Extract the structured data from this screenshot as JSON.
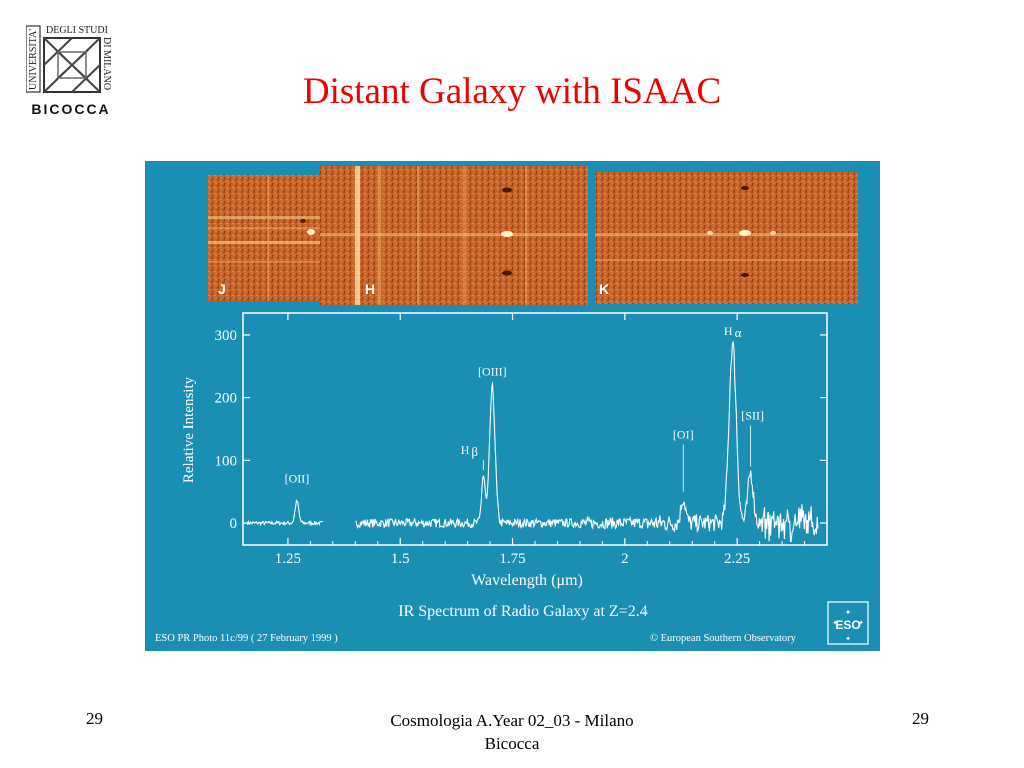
{
  "slide": {
    "title": "Distant Galaxy with ISAAC",
    "logo_text": {
      "line1": "UNIVERSITA'",
      "line2": "DEGLI STUDI",
      "line3": "DI MILANO",
      "name": "BICOCCA"
    }
  },
  "figure": {
    "background": "#1b8fb3",
    "band_labels": [
      "J",
      "H",
      "K"
    ],
    "caption": "IR Spectrum of Radio Galaxy at Z=2.4",
    "credit_left": "ESO PR Photo 11c/99 ( 27 February 1999 )",
    "credit_right": "© European Southern Observatory",
    "eso_logo": "ESO"
  },
  "chart_data": {
    "type": "line",
    "xlabel": "Wavelength (μm)",
    "ylabel": "Relative Intensity",
    "x_ticks": [
      "1.25",
      "1.5",
      "1.75",
      "2",
      "2.25"
    ],
    "y_ticks": [
      "0",
      "100",
      "200",
      "300"
    ],
    "xlim": [
      1.15,
      2.45
    ],
    "ylim": [
      -35,
      335
    ],
    "lines": [
      {
        "name": "[OII]",
        "x": 1.27,
        "peak": 35,
        "width": 0.004,
        "label_y": 65
      },
      {
        "name": "Hβ",
        "x": 1.685,
        "peak": 75,
        "width": 0.004,
        "label_y": 110
      },
      {
        "name": "[OIII]",
        "x": 1.705,
        "peak": 215,
        "width": 0.006,
        "label_y": 235
      },
      {
        "name": "[OI]",
        "x": 2.13,
        "peak": 40,
        "width": 0.005,
        "label_y": 135
      },
      {
        "name": "Hα",
        "x": 2.24,
        "peak": 285,
        "width": 0.008,
        "label_y": 300
      },
      {
        "name": "[SII]",
        "x": 2.28,
        "peak": 80,
        "width": 0.006,
        "label_y": 165
      }
    ],
    "line_labels": [
      "[OII]",
      "H",
      "β",
      "[OIII]",
      "[OI]",
      "H",
      "α",
      "[SII]"
    ],
    "gaps": [
      [
        1.33,
        1.4
      ]
    ],
    "grid": false,
    "color": "#ffffff"
  },
  "footer": {
    "left_page": "29",
    "center_line1": "Cosmologia A.Year 02_03 - Milano",
    "center_line2": "Bicocca",
    "right_page": "29"
  }
}
